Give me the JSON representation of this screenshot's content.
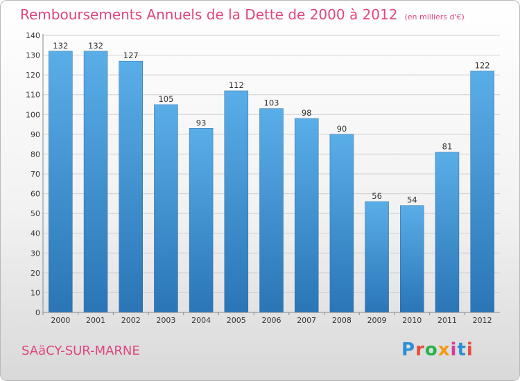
{
  "header": {
    "title": "Remboursements Annuels de la Dette de 2000 à 2012",
    "unit": "(en milliers d'€)"
  },
  "commune": {
    "name": "SAäCY-SUR-MARNE"
  },
  "logo": {
    "text": "Proxiti"
  },
  "colors": {
    "title": "#e0457f",
    "bar_top": "#5aaee8",
    "bar_bottom": "#2a75b6",
    "logo_letters": [
      "#2a8fd6",
      "#e74c3c",
      "#2ab24a",
      "#f39c12",
      "#d63b9a",
      "#2a8fd6",
      "#e74c3c"
    ]
  },
  "chart_data": {
    "type": "bar",
    "title": "Remboursements Annuels de la Dette de 2000 à 2012",
    "xlabel": "",
    "ylabel": "",
    "categories": [
      "2000",
      "2001",
      "2002",
      "2003",
      "2004",
      "2005",
      "2006",
      "2007",
      "2008",
      "2009",
      "2010",
      "2011",
      "2012"
    ],
    "values": [
      132,
      132,
      127,
      105,
      93,
      112,
      103,
      98,
      90,
      56,
      54,
      81,
      122
    ],
    "data_labels": [
      "132",
      "132",
      "127",
      "105",
      "93",
      "112",
      "103",
      "98",
      "90",
      "56",
      "54",
      "81",
      "122"
    ],
    "ylim": [
      0,
      140
    ],
    "yticks": [
      "0",
      "10",
      "20",
      "30",
      "40",
      "50",
      "60",
      "70",
      "80",
      "90",
      "100",
      "110",
      "120",
      "130",
      "140"
    ],
    "grid": true,
    "legend": "none"
  }
}
